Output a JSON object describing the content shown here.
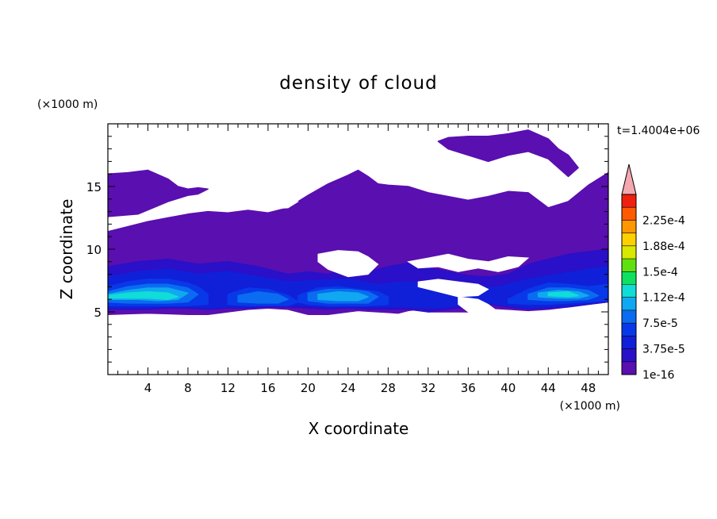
{
  "chart_data": {
    "type": "heatmap",
    "title": "density of cloud",
    "xlabel": "X coordinate",
    "ylabel": "Z coordinate",
    "x_unit": "(×1000 m)",
    "y_unit": "(×1000 m)",
    "time_label": "t=1.4004e+06",
    "xlim": [
      0,
      50
    ],
    "ylim": [
      0,
      20
    ],
    "x_ticks": [
      4,
      8,
      12,
      16,
      20,
      24,
      28,
      32,
      36,
      40,
      44,
      48
    ],
    "y_ticks": [
      5,
      10,
      15
    ],
    "colorbar": {
      "levels": [
        1e-16,
        1.875e-05,
        3.75e-05,
        5.625e-05,
        7.5e-05,
        9.375e-05,
        0.0001125,
        0.00013125,
        0.00015,
        0.00016875,
        0.0001875,
        0.00020625,
        0.000225,
        0.00024375
      ],
      "labels": [
        "1e-16",
        "3.75e-5",
        "7.5e-5",
        "1.12e-4",
        "1.5e-4",
        "1.88e-4",
        "2.25e-4"
      ],
      "colors": [
        "#5a0fb0",
        "#2a10c8",
        "#1020d8",
        "#0838e8",
        "#0a6cf0",
        "#10a8f0",
        "#10dcd8",
        "#10e060",
        "#60e010",
        "#d8e800",
        "#ffd000",
        "#ff9800",
        "#ff5a00",
        "#f02010"
      ],
      "extend_color": "#f4a8b0"
    },
    "regions": [
      {
        "level": 0,
        "x": [
          0,
          2,
          4,
          6,
          7,
          8,
          9,
          10,
          9,
          8,
          6,
          3,
          0
        ],
        "z": [
          16,
          16.1,
          16.3,
          15.6,
          15,
          14.8,
          14.9,
          14.8,
          14.4,
          14.3,
          13.8,
          12.8,
          12.6
        ]
      },
      {
        "level": 0,
        "x": [
          0,
          2,
          4,
          6,
          8,
          10,
          12,
          14,
          16,
          18,
          20,
          22,
          24,
          25,
          26,
          27,
          28,
          30,
          32,
          34,
          36,
          38,
          40,
          42,
          44,
          46,
          48,
          50,
          50,
          48,
          46,
          44,
          42,
          40,
          38,
          37,
          36,
          34,
          32,
          31,
          30,
          29,
          28,
          27,
          26,
          25,
          24,
          22,
          20,
          18,
          16,
          14,
          12,
          10,
          8,
          6,
          4,
          2,
          0
        ],
        "z": [
          11.4,
          11.8,
          12.2,
          12.5,
          12.8,
          13.0,
          12.9,
          13.1,
          12.9,
          13.3,
          14.3,
          15.2,
          15.9,
          16.3,
          15.8,
          15.2,
          15.1,
          15.0,
          14.5,
          14.2,
          13.9,
          14.2,
          14.6,
          14.5,
          13.3,
          13.8,
          15.1,
          16.1,
          5.8,
          5.6,
          5.4,
          5.2,
          5.1,
          5.2,
          5.3,
          5.6,
          5.0,
          5.0,
          5.0,
          5.2,
          5.1,
          4.9,
          4.95,
          5.0,
          5.05,
          5.1,
          5.0,
          4.8,
          4.8,
          5.2,
          5.3,
          5.2,
          5.0,
          4.8,
          4.8,
          4.85,
          4.9,
          4.85,
          4.8
        ]
      },
      {
        "level": 0,
        "x": [
          33,
          34,
          36,
          38,
          40,
          42,
          44,
          45,
          46,
          47,
          46,
          44,
          42,
          40,
          38,
          36,
          34
        ],
        "z": [
          18.6,
          18.9,
          19.0,
          19.0,
          19.2,
          19.5,
          18.8,
          18.0,
          17.5,
          16.5,
          15.8,
          17.2,
          17.8,
          17.5,
          17.0,
          17.5,
          18.0
        ]
      },
      {
        "level": 1,
        "x": [
          0,
          3,
          6,
          9,
          12,
          15,
          18,
          20,
          22,
          24,
          26,
          28,
          30,
          32,
          34,
          36,
          38,
          40,
          42,
          44,
          46,
          48,
          50,
          50,
          48,
          46,
          44,
          42,
          40,
          38,
          36,
          34,
          32,
          30,
          28,
          26,
          24,
          22,
          20,
          18,
          16,
          14,
          12,
          10,
          8,
          6,
          4,
          2,
          0
        ],
        "z": [
          8.6,
          9.0,
          9.2,
          8.8,
          9.0,
          8.6,
          8.0,
          8.2,
          8.0,
          8.4,
          8.2,
          8.6,
          8.9,
          8.5,
          8.2,
          7.9,
          7.8,
          8.0,
          8.8,
          9.2,
          9.6,
          9.8,
          10.0,
          5.8,
          5.6,
          5.4,
          5.3,
          5.2,
          5.4,
          5.6,
          5.4,
          5.2,
          5.0,
          5.2,
          5.2,
          5.2,
          5.3,
          5.2,
          5.3,
          5.4,
          5.4,
          5.3,
          5.3,
          5.2,
          5.3,
          5.3,
          5.2,
          5.2,
          5.2
        ]
      },
      {
        "level": 2,
        "x": [
          0,
          3,
          6,
          9,
          12,
          15,
          18,
          21,
          24,
          27,
          30,
          33,
          36,
          39,
          42,
          45,
          48,
          50,
          50,
          48,
          46,
          44,
          42,
          40,
          38,
          36,
          34,
          32,
          30,
          28,
          26,
          24,
          22,
          20,
          18,
          16,
          14,
          12,
          10,
          8,
          6,
          4,
          2,
          0
        ],
        "z": [
          7.8,
          8.2,
          8.4,
          8.0,
          8.2,
          7.8,
          7.4,
          7.5,
          7.6,
          7.2,
          7.4,
          7.0,
          6.8,
          7.0,
          7.6,
          8.0,
          8.4,
          8.6,
          5.9,
          5.7,
          5.5,
          5.4,
          5.3,
          5.5,
          5.7,
          5.6,
          5.4,
          5.3,
          5.4,
          5.4,
          5.4,
          5.4,
          5.4,
          5.5,
          5.5,
          5.5,
          5.4,
          5.4,
          5.3,
          5.4,
          5.4,
          5.3,
          5.3,
          5.3
        ]
      },
      {
        "level": 3,
        "x": [
          0,
          2,
          4,
          6,
          8,
          9,
          10,
          10,
          8,
          6,
          4,
          2,
          0
        ],
        "z": [
          7.0,
          7.4,
          7.6,
          7.6,
          7.3,
          7.0,
          6.4,
          5.6,
          5.5,
          5.5,
          5.5,
          5.5,
          5.5
        ]
      },
      {
        "level": 3,
        "x": [
          12,
          14,
          16,
          18,
          19,
          18,
          16,
          14,
          12
        ],
        "z": [
          6.4,
          6.9,
          6.8,
          6.3,
          5.8,
          5.5,
          5.5,
          5.5,
          5.6
        ]
      },
      {
        "level": 3,
        "x": [
          19,
          21,
          23,
          25,
          27,
          28,
          28,
          26,
          24,
          22,
          20,
          19
        ],
        "z": [
          6.3,
          6.9,
          7.0,
          6.8,
          6.6,
          6.2,
          5.6,
          5.5,
          5.5,
          5.5,
          5.6,
          5.8
        ]
      },
      {
        "level": 3,
        "x": [
          40,
          42,
          44,
          46,
          48,
          50,
          50,
          48,
          46,
          44,
          42,
          40
        ],
        "z": [
          6.0,
          6.8,
          7.3,
          7.2,
          7.0,
          7.2,
          5.9,
          5.8,
          5.7,
          5.6,
          5.6,
          5.7
        ]
      },
      {
        "level": 4,
        "x": [
          0,
          2,
          4,
          6,
          8,
          9,
          8,
          6,
          4,
          2,
          0
        ],
        "z": [
          6.6,
          7.0,
          7.2,
          7.2,
          6.9,
          6.4,
          5.8,
          5.7,
          5.7,
          5.7,
          5.8
        ]
      },
      {
        "level": 4,
        "x": [
          13,
          15,
          17,
          18,
          17,
          15,
          13
        ],
        "z": [
          6.3,
          6.6,
          6.4,
          6.0,
          5.7,
          5.7,
          5.8
        ]
      },
      {
        "level": 4,
        "x": [
          20,
          22,
          24,
          26,
          27,
          26,
          24,
          22,
          20
        ],
        "z": [
          6.5,
          6.8,
          6.8,
          6.6,
          6.2,
          5.7,
          5.7,
          5.7,
          5.9
        ]
      },
      {
        "level": 4,
        "x": [
          42,
          44,
          46,
          48,
          49,
          48,
          46,
          44,
          42
        ],
        "z": [
          6.4,
          6.9,
          6.9,
          6.7,
          6.3,
          6.0,
          5.9,
          5.9,
          6.0
        ]
      },
      {
        "level": 5,
        "x": [
          0,
          2,
          4,
          6,
          8,
          7,
          5,
          3,
          1,
          0
        ],
        "z": [
          6.4,
          6.7,
          6.9,
          6.9,
          6.5,
          6.0,
          5.9,
          6.0,
          6.0,
          6.0
        ]
      },
      {
        "level": 5,
        "x": [
          21,
          23,
          25,
          26,
          25,
          23,
          21
        ],
        "z": [
          6.4,
          6.6,
          6.5,
          6.2,
          5.9,
          5.9,
          6.0
        ]
      },
      {
        "level": 5,
        "x": [
          43,
          45,
          47,
          48,
          47,
          45,
          43
        ],
        "z": [
          6.5,
          6.7,
          6.6,
          6.3,
          6.1,
          6.1,
          6.2
        ]
      },
      {
        "level": 6,
        "x": [
          0,
          2,
          4,
          6,
          7,
          6,
          4,
          2,
          0
        ],
        "z": [
          6.3,
          6.5,
          6.6,
          6.5,
          6.2,
          6.0,
          6.1,
          6.1,
          6.1
        ]
      },
      {
        "level": 6,
        "x": [
          44,
          46,
          47,
          46,
          44
        ],
        "z": [
          6.5,
          6.6,
          6.3,
          6.2,
          6.3
        ]
      }
    ],
    "holes": [
      {
        "x": [
          10,
          12,
          14,
          16,
          18,
          19,
          18,
          16,
          14,
          12,
          10
        ],
        "z": [
          14.0,
          13.8,
          13.4,
          13.2,
          13.3,
          13.8,
          14.6,
          14.8,
          14.4,
          14.3,
          14.6
        ]
      },
      {
        "x": [
          30,
          32,
          34,
          36,
          38,
          40,
          42,
          41,
          39,
          37,
          35,
          33,
          31
        ],
        "z": [
          9.0,
          9.3,
          9.6,
          9.2,
          9.0,
          9.4,
          9.3,
          8.6,
          8.2,
          8.5,
          8.2,
          8.6,
          8.5
        ]
      },
      {
        "x": [
          21,
          23,
          25,
          26,
          27,
          26,
          24,
          22,
          21
        ],
        "z": [
          9.6,
          9.9,
          9.8,
          9.4,
          8.8,
          8.0,
          7.8,
          8.4,
          9.0
        ]
      },
      {
        "x": [
          31,
          33,
          35,
          37,
          38,
          37,
          35,
          33,
          31
        ],
        "z": [
          7.4,
          7.6,
          7.4,
          7.2,
          6.8,
          6.3,
          6.2,
          6.6,
          7.0
        ]
      },
      {
        "x": [
          35,
          37,
          38,
          39,
          38,
          36,
          35
        ],
        "z": [
          6.2,
          6.0,
          5.6,
          5.0,
          4.8,
          5.0,
          5.6
        ]
      }
    ],
    "grid": false,
    "legend": "right"
  }
}
